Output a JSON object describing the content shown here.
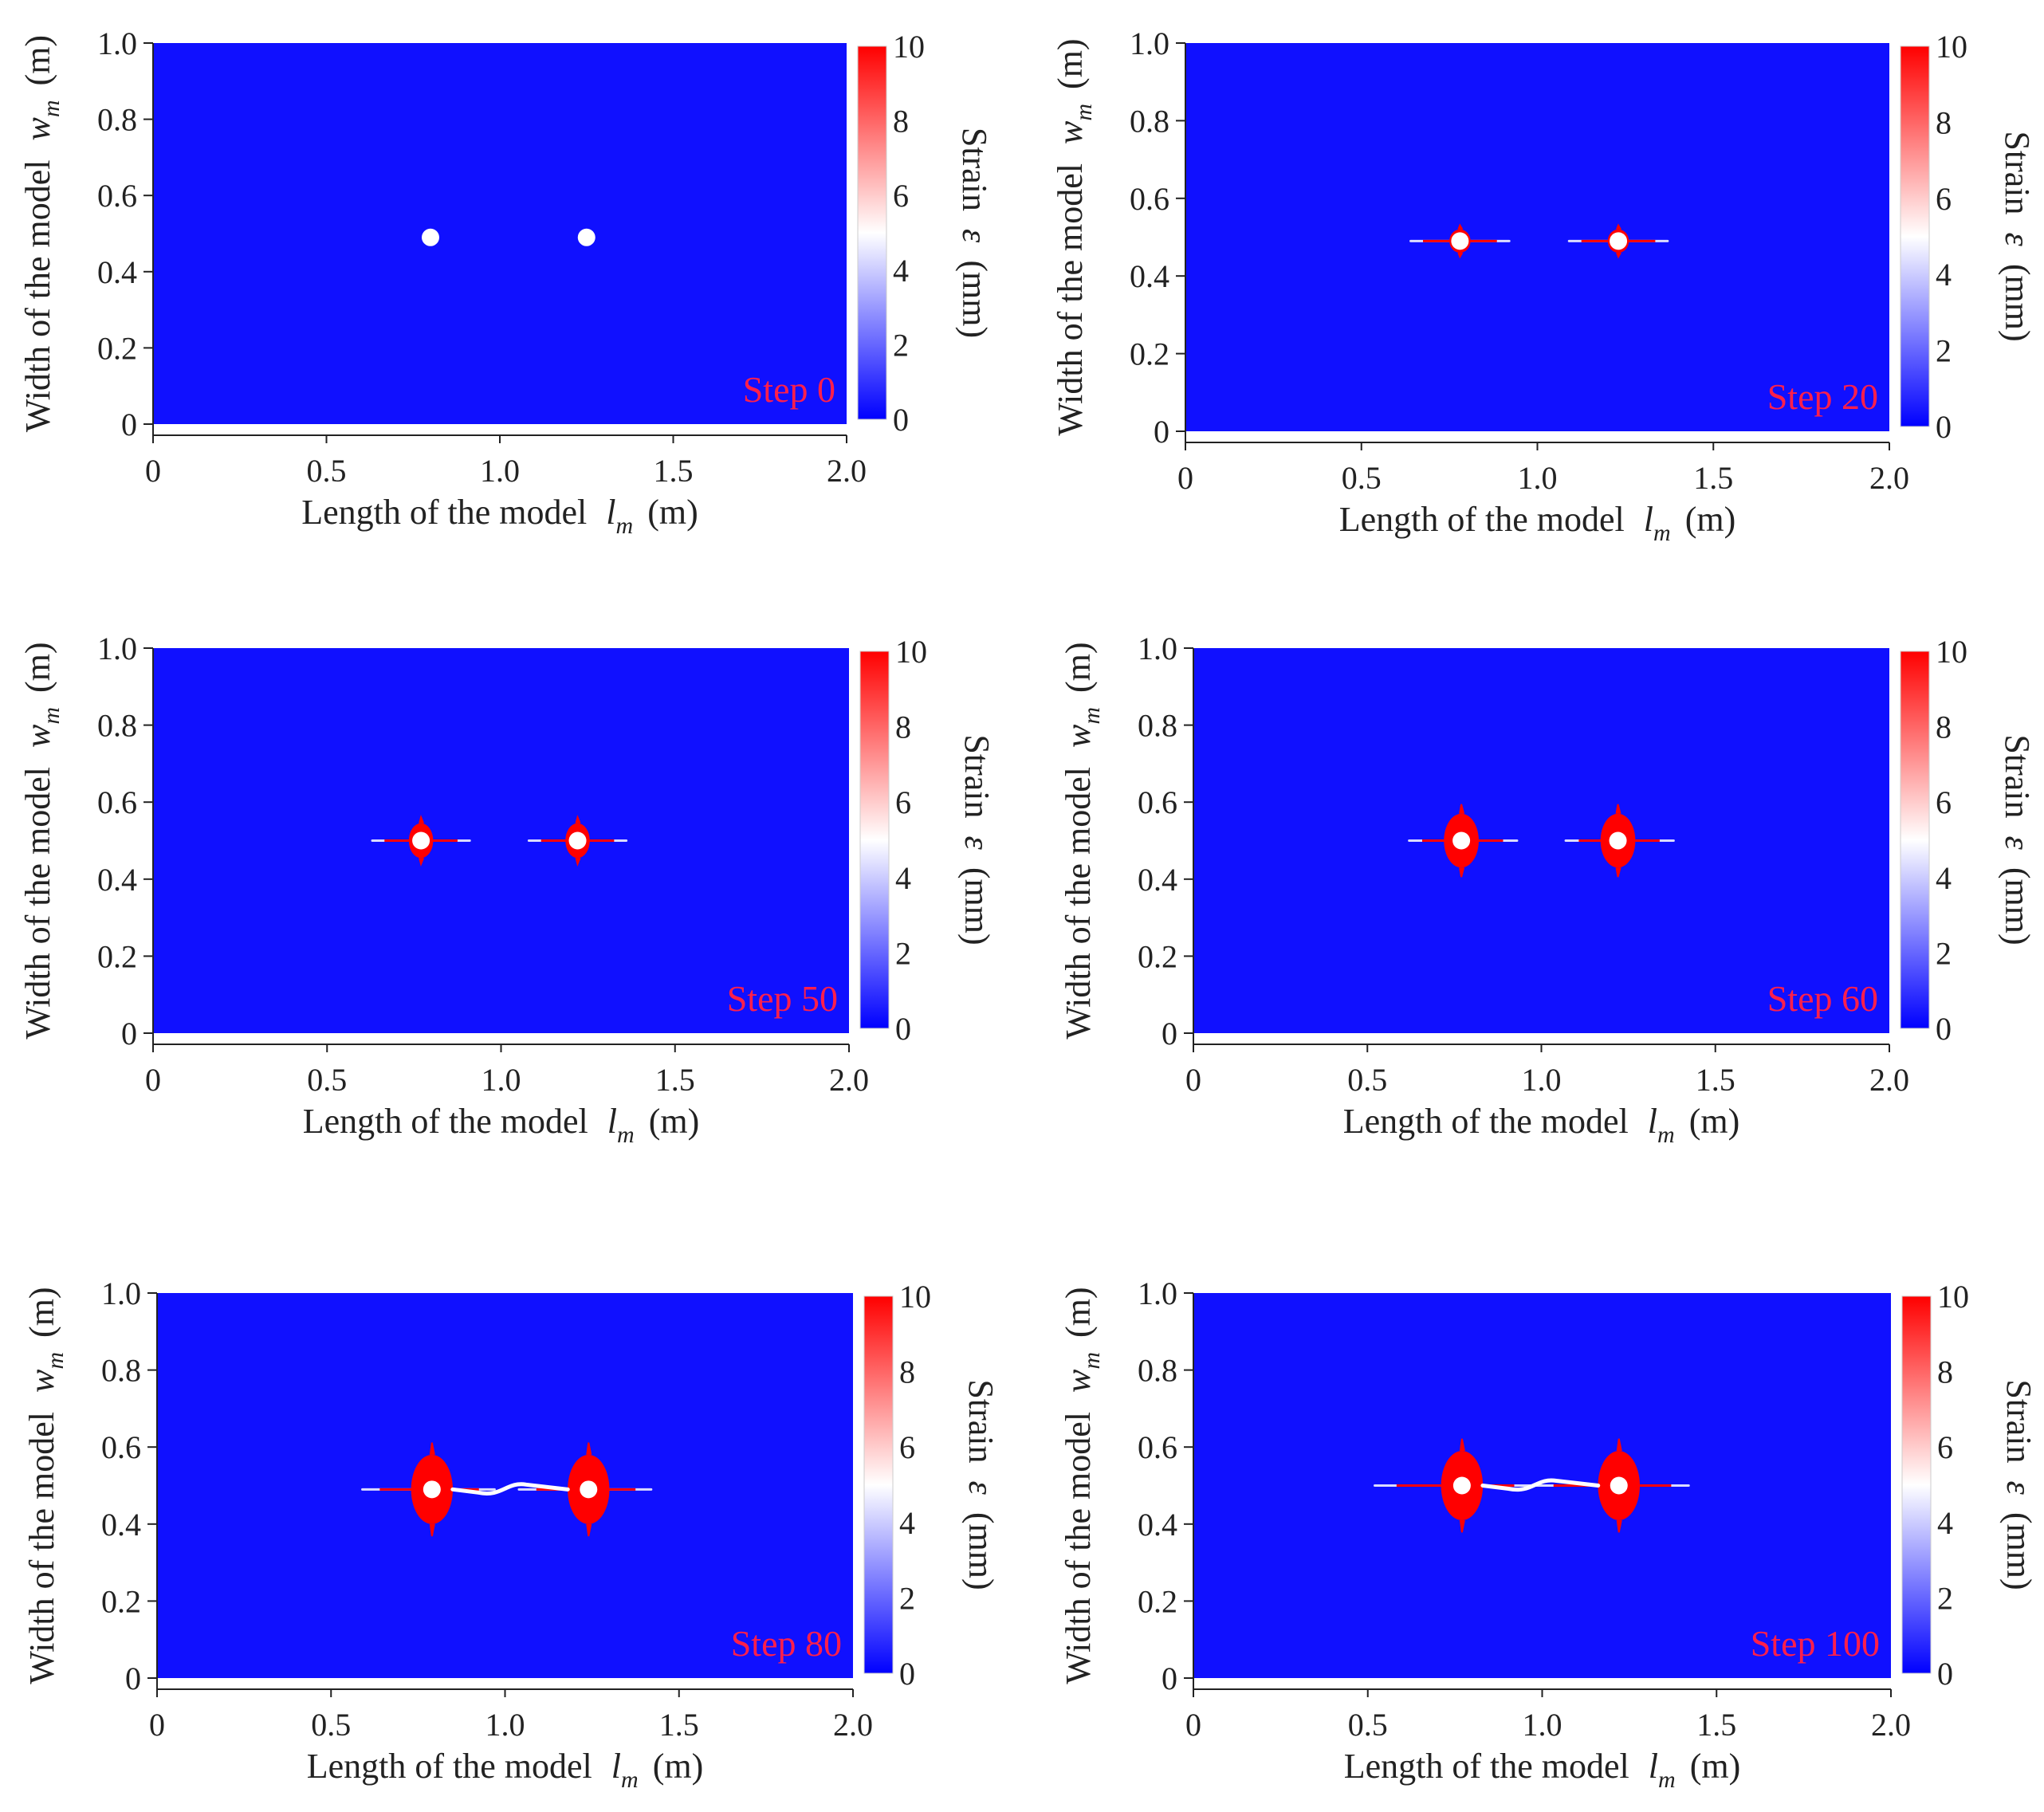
{
  "chart_data": [
    {
      "type": "heatmap",
      "title": "Step 0",
      "xlabel": "Length of the model",
      "xlabel_symbol": "l",
      "xlabel_sub": "m",
      "xlabel_unit": "(m)",
      "ylabel": "Width of the model",
      "ylabel_symbol": "w",
      "ylabel_sub": "m",
      "ylabel_unit": "(m)",
      "xlim": [
        0,
        2.0
      ],
      "ylim": [
        0,
        1.0
      ],
      "xticks": [
        "0",
        "0.5",
        "1.0",
        "1.5",
        "2.0"
      ],
      "yticks": [
        "0",
        "0.2",
        "0.4",
        "0.6",
        "0.8",
        "1.0"
      ],
      "colorbar": {
        "label": "Strain",
        "symbol": "ε",
        "unit": "(mm)",
        "range": [
          0,
          10
        ],
        "ticks": [
          "0",
          "2",
          "4",
          "6",
          "8",
          "10"
        ]
      },
      "holes": [
        {
          "x": 0.8,
          "y": 0.49
        },
        {
          "x": 1.25,
          "y": 0.49
        }
      ],
      "damage": {
        "zone_w": 0.0,
        "zone_h": 0.0,
        "crack_left": 0.0,
        "crack_right": 0.0,
        "bridge": false
      }
    },
    {
      "type": "heatmap",
      "title": "Step 20",
      "xlabel": "Length of the model",
      "xlabel_symbol": "l",
      "xlabel_sub": "m",
      "xlabel_unit": "(m)",
      "ylabel": "Width of the model",
      "ylabel_symbol": "w",
      "ylabel_sub": "m",
      "ylabel_unit": "(m)",
      "xlim": [
        0,
        2.0
      ],
      "ylim": [
        0,
        1.0
      ],
      "xticks": [
        "0",
        "0.5",
        "1.0",
        "1.5",
        "2.0"
      ],
      "yticks": [
        "0",
        "0.2",
        "0.4",
        "0.6",
        "0.8",
        "1.0"
      ],
      "colorbar": {
        "label": "Strain",
        "symbol": "ε",
        "unit": "(mm)",
        "range": [
          0,
          10
        ],
        "ticks": [
          "0",
          "2",
          "4",
          "6",
          "8",
          "10"
        ]
      },
      "holes": [
        {
          "x": 0.78,
          "y": 0.49
        },
        {
          "x": 1.23,
          "y": 0.49
        }
      ],
      "damage": {
        "zone_w": 0.03,
        "zone_h": 0.03,
        "crack_left": 0.14,
        "crack_right": 0.14,
        "bridge": false
      }
    },
    {
      "type": "heatmap",
      "title": "Step 50",
      "xlabel": "Length of the model",
      "xlabel_symbol": "l",
      "xlabel_sub": "m",
      "xlabel_unit": "(m)",
      "ylabel": "Width of the model",
      "ylabel_symbol": "w",
      "ylabel_sub": "m",
      "ylabel_unit": "(m)",
      "xlim": [
        0,
        2.0
      ],
      "ylim": [
        0,
        1.0
      ],
      "xticks": [
        "0",
        "0.5",
        "1.0",
        "1.5",
        "2.0"
      ],
      "yticks": [
        "0",
        "0.2",
        "0.4",
        "0.6",
        "0.8",
        "1.0"
      ],
      "colorbar": {
        "label": "Strain",
        "symbol": "ε",
        "unit": "(mm)",
        "range": [
          0,
          10
        ],
        "ticks": [
          "0",
          "2",
          "4",
          "6",
          "8",
          "10"
        ]
      },
      "holes": [
        {
          "x": 0.77,
          "y": 0.5
        },
        {
          "x": 1.22,
          "y": 0.5
        }
      ],
      "damage": {
        "zone_w": 0.035,
        "zone_h": 0.045,
        "crack_left": 0.14,
        "crack_right": 0.14,
        "bridge": false
      }
    },
    {
      "type": "heatmap",
      "title": "Step 60",
      "xlabel": "Length of the model",
      "xlabel_symbol": "l",
      "xlabel_sub": "m",
      "xlabel_unit": "(m)",
      "ylabel": "Width of the model",
      "ylabel_symbol": "w",
      "ylabel_sub": "m",
      "ylabel_unit": "(m)",
      "xlim": [
        0,
        2.0
      ],
      "ylim": [
        0,
        1.0
      ],
      "xticks": [
        "0",
        "0.5",
        "1.0",
        "1.5",
        "2.0"
      ],
      "yticks": [
        "0",
        "0.2",
        "0.4",
        "0.6",
        "0.8",
        "1.0"
      ],
      "colorbar": {
        "label": "Strain",
        "symbol": "ε",
        "unit": "(mm)",
        "range": [
          0,
          10
        ],
        "ticks": [
          "0",
          "2",
          "4",
          "6",
          "8",
          "10"
        ]
      },
      "holes": [
        {
          "x": 0.77,
          "y": 0.5
        },
        {
          "x": 1.22,
          "y": 0.5
        }
      ],
      "damage": {
        "zone_w": 0.05,
        "zone_h": 0.07,
        "crack_left": 0.15,
        "crack_right": 0.16,
        "bridge": false
      }
    },
    {
      "type": "heatmap",
      "title": "Step 80",
      "xlabel": "Length of the model",
      "xlabel_symbol": "l",
      "xlabel_sub": "m",
      "xlabel_unit": "(m)",
      "ylabel": "Width of the model",
      "ylabel_symbol": "w",
      "ylabel_sub": "m",
      "ylabel_unit": "(m)",
      "xlim": [
        0,
        2.0
      ],
      "ylim": [
        0,
        1.0
      ],
      "xticks": [
        "0",
        "0.5",
        "1.0",
        "1.5",
        "2.0"
      ],
      "yticks": [
        "0",
        "0.2",
        "0.4",
        "0.6",
        "0.8",
        "1.0"
      ],
      "colorbar": {
        "label": "Strain",
        "symbol": "ε",
        "unit": "(mm)",
        "range": [
          0,
          10
        ],
        "ticks": [
          "0",
          "2",
          "4",
          "6",
          "8",
          "10"
        ]
      },
      "holes": [
        {
          "x": 0.79,
          "y": 0.49
        },
        {
          "x": 1.24,
          "y": 0.49
        }
      ],
      "damage": {
        "zone_w": 0.06,
        "zone_h": 0.09,
        "crack_left": 0.2,
        "crack_right": 0.18,
        "bridge": true
      }
    },
    {
      "type": "heatmap",
      "title": "Step 100",
      "xlabel": "Length of the model",
      "xlabel_symbol": "l",
      "xlabel_sub": "m",
      "xlabel_unit": "(m)",
      "ylabel": "Width of the model",
      "ylabel_symbol": "w",
      "ylabel_sub": "m",
      "ylabel_unit": "(m)",
      "xlim": [
        0,
        2.0
      ],
      "ylim": [
        0,
        1.0
      ],
      "xticks": [
        "0",
        "0.5",
        "1.0",
        "1.5",
        "2.0"
      ],
      "yticks": [
        "0",
        "0.2",
        "0.4",
        "0.6",
        "0.8",
        "1.0"
      ],
      "colorbar": {
        "label": "Strain",
        "symbol": "ε",
        "unit": "(mm)",
        "range": [
          0,
          10
        ],
        "ticks": [
          "0",
          "2",
          "4",
          "6",
          "8",
          "10"
        ]
      },
      "holes": [
        {
          "x": 0.77,
          "y": 0.5
        },
        {
          "x": 1.22,
          "y": 0.5
        }
      ],
      "damage": {
        "zone_w": 0.06,
        "zone_h": 0.09,
        "crack_left": 0.25,
        "crack_right": 0.2,
        "bridge": true
      }
    }
  ],
  "colors": {
    "background_strain": "#1010ff",
    "damage": "#ff0000",
    "crack": "#ffffff",
    "hole": "#ffffff",
    "step_label": "#ff1f4b",
    "axis": "#222222",
    "colorbar_top": "#ff0000",
    "colorbar_mid": "#ffffff",
    "colorbar_bottom": "#0000ff"
  }
}
